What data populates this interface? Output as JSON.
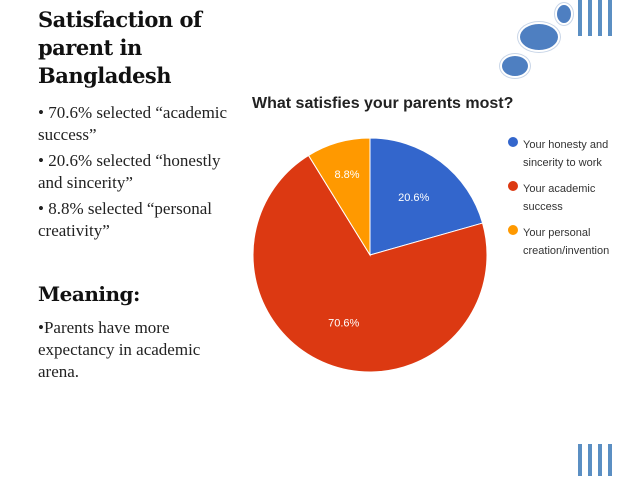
{
  "slide": {
    "title": "Satisfaction of parent in Bangladesh",
    "bullets": [
      "• 70.6% selected “academic success”",
      "• 20.6% selected “honestly and sincerity”",
      "• 8.8% selected “personal creativity”"
    ],
    "meaning_heading": "Meaning:",
    "meaning_text": "•Parents have more expectancy in academic arena."
  },
  "chart_data": {
    "type": "pie",
    "title": "What satisfies your parents most?",
    "slices": [
      {
        "label": "Your honesty and sincerity to work",
        "value": 20.6,
        "display": "20.6%",
        "color": "#3366cc"
      },
      {
        "label": "Your academic success",
        "value": 70.6,
        "display": "70.6%",
        "color": "#dc3912"
      },
      {
        "label": "Your personal creation/invention",
        "value": 8.8,
        "display": "8.8%",
        "color": "#ff9900"
      }
    ],
    "legend_position": "right"
  },
  "colors": {
    "decoration": "#5b8fc3",
    "circle": "#4e7fc1"
  }
}
